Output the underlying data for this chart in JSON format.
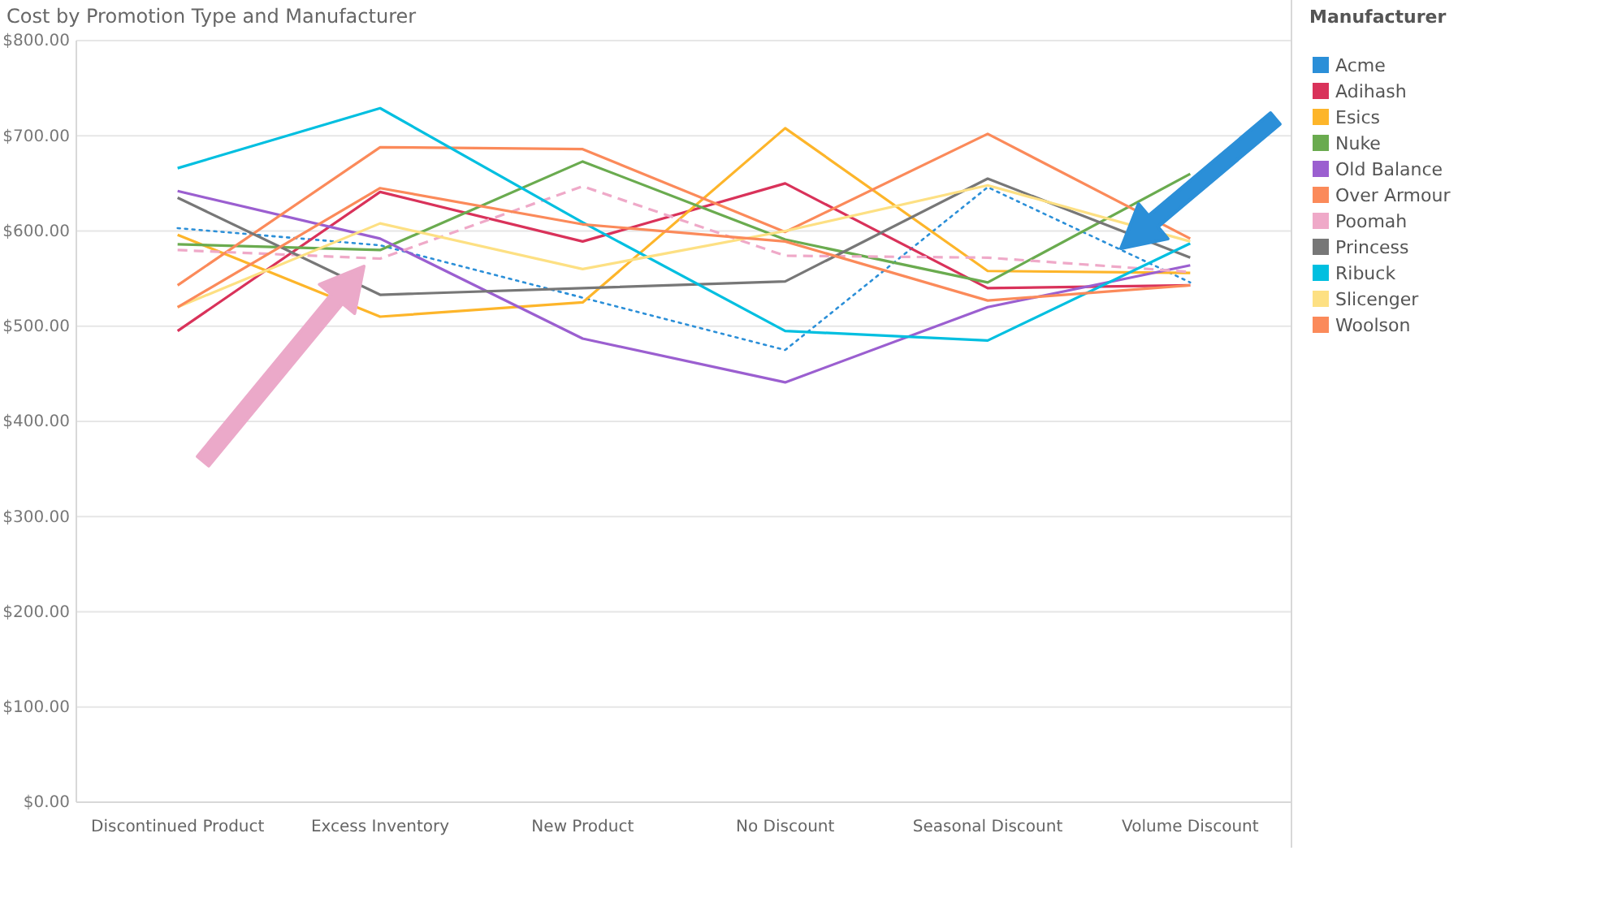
{
  "chart_data": {
    "type": "line",
    "title": "Cost by Promotion Type and Manufacturer",
    "categories": [
      "Discontinued Product",
      "Excess Inventory",
      "New Product",
      "No Discount",
      "Seasonal Discount",
      "Volume Discount"
    ],
    "ylim": [
      0,
      800
    ],
    "yticks": [
      {
        "value": 0,
        "label": "$0.00"
      },
      {
        "value": 100,
        "label": "$100.00"
      },
      {
        "value": 200,
        "label": "$200.00"
      },
      {
        "value": 300,
        "label": "$300.00"
      },
      {
        "value": 400,
        "label": "$400.00"
      },
      {
        "value": 500,
        "label": "$500.00"
      },
      {
        "value": 600,
        "label": "$600.00"
      },
      {
        "value": 700,
        "label": "$700.00"
      },
      {
        "value": 800,
        "label": "$800.00"
      }
    ],
    "grid": "y",
    "legend": "right",
    "legend_title": "Manufacturer",
    "series": [
      {
        "name": "Acme",
        "color": "#2b8fd8",
        "line_style": "dotted",
        "values": [
          603,
          585,
          530,
          475,
          646,
          546
        ]
      },
      {
        "name": "Adihash",
        "color": "#d9325a",
        "values": [
          495,
          641,
          589,
          650,
          540,
          543
        ]
      },
      {
        "name": "Esics",
        "color": "#fdb52a",
        "values": [
          596,
          510,
          525,
          708,
          558,
          556
        ]
      },
      {
        "name": "Nuke",
        "color": "#6aab4f",
        "values": [
          586,
          580,
          673,
          591,
          546,
          660
        ]
      },
      {
        "name": "Old Balance",
        "color": "#9b5fd0",
        "values": [
          642,
          592,
          487,
          441,
          520,
          564
        ]
      },
      {
        "name": "Over Armour",
        "color": "#fb8a5a",
        "values": [
          543,
          688,
          686,
          599,
          702,
          592
        ]
      },
      {
        "name": "Poomah",
        "color": "#efa9c8",
        "line_style": "dashed",
        "values": [
          580,
          571,
          647,
          574,
          572,
          557
        ]
      },
      {
        "name": "Princess",
        "color": "#777777",
        "values": [
          635,
          533,
          540,
          547,
          655,
          572
        ]
      },
      {
        "name": "Ribuck",
        "color": "#00bfe0",
        "values": [
          666,
          729,
          609,
          495,
          485,
          587
        ]
      },
      {
        "name": "Slicenger",
        "color": "#fde083",
        "values": [
          520,
          608,
          560,
          600,
          648,
          589
        ]
      },
      {
        "name": "Woolson",
        "color": "#fb8a5a",
        "values": [
          520,
          645,
          607,
          589,
          527,
          543
        ]
      }
    ]
  }
}
